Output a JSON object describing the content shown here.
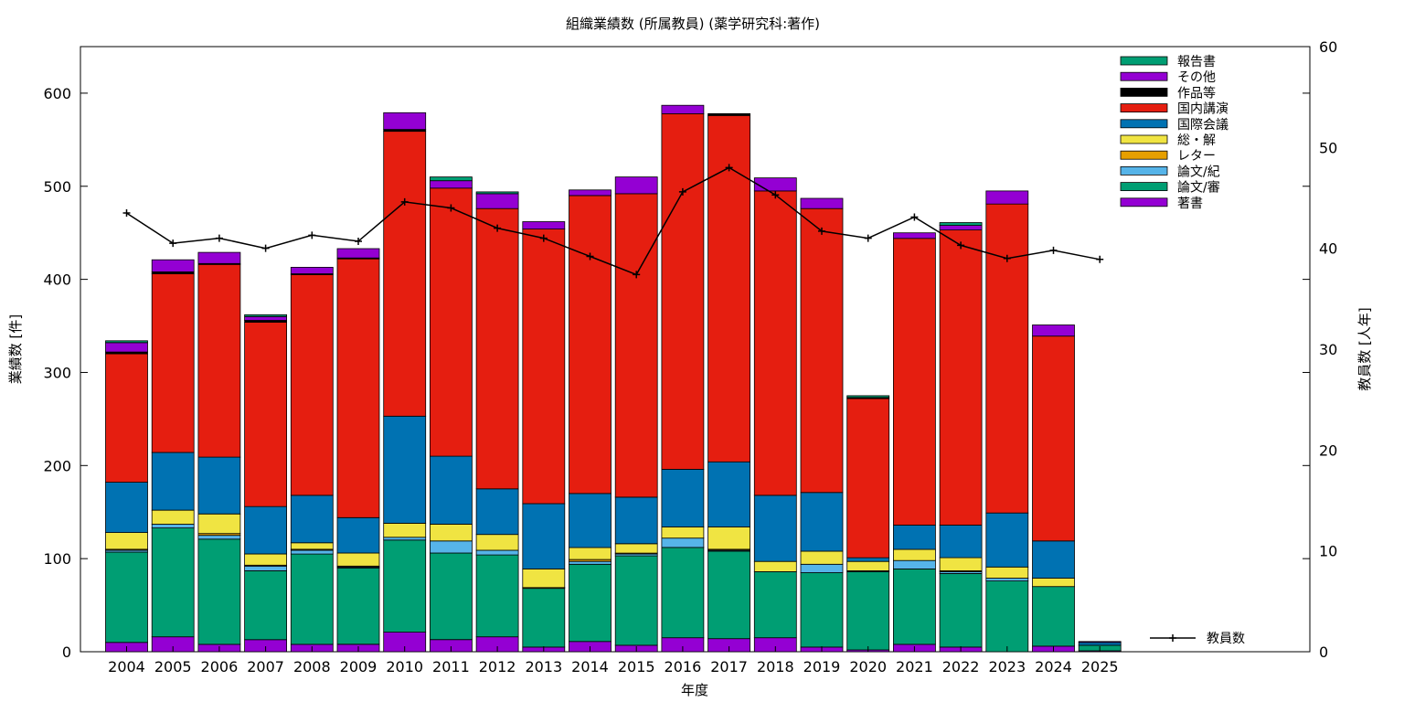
{
  "chart_data": {
    "type": "bar",
    "stacked": true,
    "title": "組織業績数 (所属教員) (薬学研究科:著作)",
    "xlabel": "年度",
    "ylabel": "業績数 [件]",
    "y2label": "教員数 [人年]",
    "ylim": [
      0,
      650
    ],
    "y2lim": [
      0,
      60
    ],
    "yticks": [
      0,
      100,
      200,
      300,
      400,
      500,
      600
    ],
    "y2ticks": [
      0,
      10,
      20,
      30,
      40,
      50,
      60
    ],
    "grid": false,
    "legend_position": "top-right",
    "categories": [
      "2004",
      "2005",
      "2006",
      "2007",
      "2008",
      "2009",
      "2010",
      "2011",
      "2012",
      "2013",
      "2014",
      "2015",
      "2016",
      "2017",
      "2018",
      "2019",
      "2020",
      "2021",
      "2022",
      "2023",
      "2024",
      "2025"
    ],
    "series": [
      {
        "name": "著書",
        "color": "#9400d3",
        "values": [
          10,
          16,
          8,
          13,
          8,
          8,
          21,
          13,
          16,
          5,
          11,
          7,
          15,
          14,
          15,
          5,
          2,
          8,
          5,
          0,
          6,
          1
        ]
      },
      {
        "name": "論文/審",
        "color": "#009e73",
        "values": [
          97,
          117,
          113,
          74,
          97,
          82,
          99,
          93,
          88,
          63,
          83,
          96,
          97,
          94,
          71,
          80,
          84,
          81,
          79,
          76,
          64,
          6
        ]
      },
      {
        "name": "論文/紀",
        "color": "#56b4e9",
        "values": [
          2,
          4,
          4,
          5,
          4,
          1,
          3,
          13,
          5,
          0,
          3,
          2,
          10,
          1,
          0,
          9,
          1,
          9,
          2,
          3,
          0,
          0
        ]
      },
      {
        "name": "レター",
        "color": "#e69f00",
        "values": [
          1,
          0,
          2,
          1,
          1,
          1,
          0,
          0,
          0,
          1,
          2,
          1,
          0,
          1,
          0,
          0,
          0,
          0,
          1,
          0,
          0,
          0
        ]
      },
      {
        "name": "総・解",
        "color": "#f0e442",
        "values": [
          18,
          15,
          21,
          12,
          7,
          14,
          15,
          18,
          17,
          20,
          13,
          10,
          12,
          24,
          11,
          14,
          10,
          12,
          14,
          12,
          9,
          0
        ]
      },
      {
        "name": "国際会議",
        "color": "#0072b2",
        "values": [
          54,
          62,
          61,
          51,
          51,
          38,
          115,
          73,
          49,
          70,
          58,
          50,
          62,
          70,
          71,
          63,
          4,
          26,
          35,
          58,
          40,
          3
        ]
      },
      {
        "name": "国内講演",
        "color": "#e51e10",
        "values": [
          138,
          192,
          207,
          198,
          237,
          278,
          306,
          288,
          301,
          295,
          320,
          326,
          382,
          372,
          327,
          305,
          171,
          308,
          317,
          332,
          220,
          0
        ]
      },
      {
        "name": "作品等",
        "color": "#000000",
        "values": [
          2,
          2,
          1,
          2,
          1,
          1,
          2,
          0,
          0,
          0,
          0,
          0,
          0,
          2,
          0,
          0,
          1,
          0,
          0,
          0,
          0,
          0
        ]
      },
      {
        "name": "その他",
        "color": "#9400d3",
        "values": [
          10,
          13,
          12,
          4,
          7,
          10,
          18,
          8,
          16,
          8,
          6,
          18,
          9,
          0,
          14,
          11,
          0,
          6,
          5,
          14,
          12,
          1
        ]
      },
      {
        "name": "報告書",
        "color": "#009e73",
        "values": [
          2,
          0,
          0,
          2,
          0,
          0,
          0,
          4,
          2,
          0,
          0,
          0,
          0,
          0,
          0,
          0,
          2,
          0,
          3,
          0,
          0,
          0
        ]
      }
    ],
    "line_series": {
      "name": "教員数",
      "axis": "y2",
      "color": "#000000",
      "categories": [
        "2004",
        "2005",
        "2006",
        "2007",
        "2008",
        "2009",
        "2010",
        "2011",
        "2012",
        "2013",
        "2014",
        "2015",
        "2016",
        "2017",
        "2018",
        "2019",
        "2020",
        "2021",
        "2022",
        "2023",
        "2024",
        "2025"
      ],
      "values": [
        43.5,
        40.5,
        41.0,
        40.0,
        41.3,
        40.7,
        44.6,
        44.0,
        42.0,
        41.0,
        39.2,
        37.4,
        45.6,
        48.0,
        45.3,
        41.7,
        41.0,
        43.1,
        40.3,
        39.0,
        39.8,
        38.9
      ]
    }
  }
}
